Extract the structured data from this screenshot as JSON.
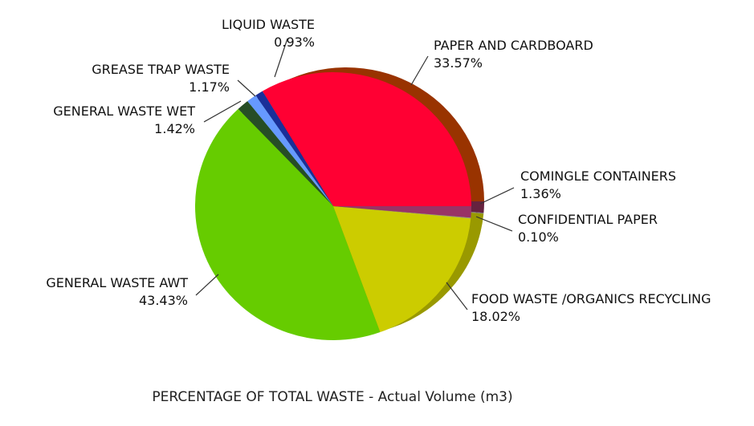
{
  "chart_data": {
    "type": "pie",
    "title": "PERCENTAGE OF TOTAL WASTE - Actual Volume (m3)",
    "style": "3d-tilted",
    "start_angle_deg": 0,
    "direction": "counter-clockwise",
    "slices": [
      {
        "label": "PAPER AND CARDBOARD",
        "value_text": "33.57%",
        "value": 33.57,
        "color": "#ff0033",
        "side_color": "#993300"
      },
      {
        "label": "LIQUID WASTE",
        "value_text": "0.93%",
        "value": 0.93,
        "color": "#1a2f99",
        "side_color": "#0f1d66"
      },
      {
        "label": "GREASE TRAP WASTE",
        "value_text": "1.17%",
        "value": 1.17,
        "color": "#6699ff",
        "side_color": "#3d66cc"
      },
      {
        "label": "GENERAL WASTE WET",
        "value_text": "1.42%",
        "value": 1.42,
        "color": "#264d26",
        "side_color": "#1a331a"
      },
      {
        "label": "GENERAL WASTE AWT",
        "value_text": "43.43%",
        "value": 43.43,
        "color": "#66cc00",
        "side_color": "#4d9900"
      },
      {
        "label": "FOOD WASTE /ORGANICS RECYCLING",
        "value_text": "18.02%",
        "value": 18.02,
        "color": "#cccc00",
        "side_color": "#999900"
      },
      {
        "label": "CONFIDENTIAL PAPER",
        "value_text": "0.10%",
        "value": 0.1,
        "color": "#999999",
        "side_color": "#777777"
      },
      {
        "label": "COMINGLE CONTAINERS",
        "value_text": "1.36%",
        "value": 1.36,
        "color": "#993366",
        "side_color": "#66223f"
      }
    ]
  }
}
